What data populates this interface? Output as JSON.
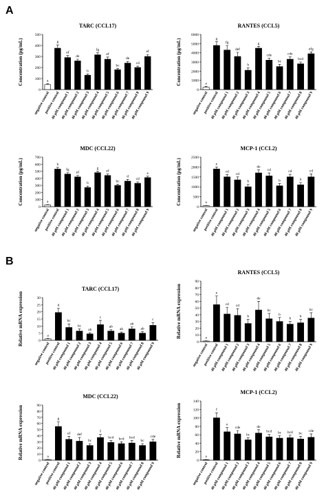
{
  "panel_labels": [
    "A",
    "B"
  ],
  "chart_data": [
    {
      "type": "bar",
      "title": "TARC (CCL17)",
      "y_label": "Concentration (pg/mL)",
      "categories": [
        "negative control",
        "positive control",
        "40 μM compound 1",
        "40 μM compound 2",
        "40 μM compound 3",
        "40 μM compound 4",
        "40 μM compound 5",
        "40 μM compound 6",
        "40 μM compound 7",
        "40 μM compound 8",
        "40 μM compound 9"
      ],
      "values": [
        45,
        375,
        290,
        260,
        130,
        315,
        275,
        180,
        240,
        200,
        300
      ],
      "errors": [
        8,
        30,
        18,
        15,
        12,
        18,
        20,
        12,
        15,
        12,
        18
      ],
      "letters": [
        "a",
        "g",
        "ef",
        "de",
        "b",
        "fg",
        "ef",
        "bc",
        "de",
        "cd",
        "ef"
      ],
      "ylim": [
        0,
        500
      ],
      "yticks": [
        0,
        100,
        200,
        300,
        400,
        500
      ],
      "color": "#000000",
      "first_bar_color": "#ffffff"
    },
    {
      "type": "bar",
      "title": "RANTES (CCL5)",
      "y_label": "Concentration (pg/mL)",
      "categories": [
        "negative control",
        "positive control",
        "40 μM compound 1",
        "40 μM compound 2",
        "40 μM compound 3",
        "40 μM compound 4",
        "40 μM compound 5",
        "40 μM compound 6",
        "40 μM compound 7",
        "40 μM compound 8",
        "40 μM compound 9"
      ],
      "values": [
        250,
        4800,
        4300,
        3600,
        2100,
        4500,
        3200,
        2500,
        3300,
        2800,
        3900
      ],
      "errors": [
        80,
        400,
        500,
        450,
        250,
        200,
        200,
        250,
        250,
        200,
        200
      ],
      "letters": [
        "a",
        "g",
        "fg",
        "def",
        "b",
        "g",
        "cde",
        "bc",
        "cde",
        "bcd",
        "efg"
      ],
      "ylim": [
        0,
        6000
      ],
      "yticks": [
        0,
        1000,
        2000,
        3000,
        4000,
        5000,
        6000
      ],
      "color": "#000000",
      "first_bar_color": "#ffffff"
    },
    {
      "type": "bar",
      "title": "MDC (CCL22)",
      "y_label": "Concentration (pg/mL)",
      "categories": [
        "negative control",
        "positive control",
        "40 μM compound 1",
        "40 μM compound 2",
        "40 μM compound 3",
        "40 μM compound 4",
        "40 μM compound 5",
        "40 μM compound 6",
        "40 μM compound 7",
        "40 μM compound 8",
        "40 μM compound 9"
      ],
      "values": [
        25,
        530,
        460,
        420,
        270,
        480,
        440,
        300,
        360,
        330,
        410
      ],
      "errors": [
        5,
        25,
        20,
        20,
        20,
        20,
        20,
        15,
        25,
        20,
        20
      ],
      "letters": [
        "a",
        "h",
        "fg",
        "ef",
        "b",
        "g",
        "ef",
        "bc",
        "d",
        "cd",
        "e"
      ],
      "ylim": [
        0,
        700
      ],
      "yticks": [
        0,
        100,
        200,
        300,
        400,
        500,
        600,
        700
      ],
      "color": "#000000",
      "first_bar_color": "#ffffff"
    },
    {
      "type": "bar",
      "title": "MCP-1 (CCL2)",
      "y_label": "Concentration (pg/mL)",
      "categories": [
        "negative control",
        "positive control",
        "40 μM compound 1",
        "40 μM compound 2",
        "40 μM compound 3",
        "40 μM compound 4",
        "40 μM compound 5",
        "40 μM compound 6",
        "40 μM compound 7",
        "40 μM compound 8",
        "40 μM compound 9"
      ],
      "values": [
        50,
        1900,
        1500,
        1350,
        1000,
        1700,
        1550,
        1050,
        1500,
        1100,
        1500
      ],
      "errors": [
        15,
        100,
        120,
        150,
        120,
        150,
        150,
        120,
        130,
        120,
        150
      ],
      "letters": [
        "a",
        "e",
        "cd",
        "cd",
        "b",
        "de",
        "cd",
        "b",
        "cd",
        "b",
        "cd"
      ],
      "ylim": [
        0,
        2500
      ],
      "yticks": [
        0,
        500,
        1000,
        1500,
        2000,
        2500
      ],
      "color": "#000000",
      "first_bar_color": "#ffffff"
    },
    {
      "type": "bar",
      "title": "TARC (CCL17)",
      "y_label": "Relative mRNA expression",
      "categories": [
        "negative control",
        "positive control",
        "40 μM compound 1",
        "40 μM compound 2",
        "40 μM compound 3",
        "40 μM compound 4",
        "40 μM compound 5",
        "40 μM compound 6",
        "40 μM compound 7",
        "40 μM compound 8",
        "40 μM compound 9"
      ],
      "values": [
        1,
        19.5,
        9,
        6.5,
        4.5,
        11,
        6.5,
        5,
        8,
        5,
        10.5
      ],
      "errors": [
        0.3,
        3,
        2.5,
        1.5,
        0.8,
        3,
        1,
        0.8,
        1.5,
        1,
        2
      ],
      "letters": [
        "a",
        "d",
        "bc",
        "bc",
        "ab",
        "c",
        "ab",
        "ab",
        "ab",
        "ab",
        "c"
      ],
      "ylim": [
        0,
        30
      ],
      "yticks": [
        0,
        5,
        10,
        15,
        20,
        25,
        30
      ],
      "color": "#000000",
      "first_bar_color": "#ffffff"
    },
    {
      "type": "bar",
      "title": "RANTES (CCL5)",
      "y_label": "Relative mRNA expression",
      "categories": [
        "negative control",
        "positive control",
        "40 μM compound 1",
        "40 μM compound 2",
        "40 μM compound 3",
        "40 μM compound 4",
        "40 μM compound 5",
        "40 μM compound 6",
        "40 μM compound 7",
        "40 μM compound 8",
        "40 μM compound 9"
      ],
      "values": [
        1,
        55,
        41,
        39,
        27,
        47,
        34,
        30,
        26,
        28,
        35
      ],
      "errors": [
        0.3,
        13,
        10,
        10,
        6,
        13,
        8,
        6,
        4,
        5,
        8
      ],
      "letters": [
        "a",
        "e",
        "cd",
        "cd",
        "b",
        "de",
        "bc",
        "b",
        "b",
        "b",
        "bc"
      ],
      "ylim": [
        0,
        90
      ],
      "yticks": [
        0,
        10,
        20,
        30,
        40,
        50,
        60,
        70,
        80,
        90
      ],
      "color": "#000000",
      "first_bar_color": "#ffffff"
    },
    {
      "type": "bar",
      "title": "MDC (CCL22)",
      "y_label": "Relative mRNA expression",
      "categories": [
        "negative control",
        "positive control",
        "40 μM compound 1",
        "40 μM compound 2",
        "40 μM compound 3",
        "40 μM compound 4",
        "40 μM compound 5",
        "40 μM compound 6",
        "40 μM compound 7",
        "40 μM compound 8",
        "40 μM compound 9"
      ],
      "values": [
        1,
        55,
        34,
        31,
        24,
        37,
        29,
        27,
        28,
        24,
        30
      ],
      "errors": [
        0.3,
        8,
        5,
        6,
        3,
        5,
        3,
        3,
        4,
        3,
        4
      ],
      "letters": [
        "a",
        "g",
        "ef",
        "def",
        "bc",
        "f",
        "bcd",
        "bcd",
        "bcd",
        "bc",
        "cde"
      ],
      "ylim": [
        0,
        90
      ],
      "yticks": [
        0,
        10,
        20,
        30,
        40,
        50,
        60,
        70,
        80,
        90
      ],
      "color": "#000000",
      "first_bar_color": "#ffffff"
    },
    {
      "type": "bar",
      "title": "MCP-1 (CCL2)",
      "y_label": "Relative mRNA expression",
      "categories": [
        "negative control",
        "positive control",
        "40 μM compound 1",
        "40 μM compound 2",
        "40 μM compound 3",
        "40 μM compound 4",
        "40 μM compound 5",
        "40 μM compound 6",
        "40 μM compound 7",
        "40 μM compound 8",
        "40 μM compound 9"
      ],
      "values": [
        1,
        100,
        67,
        62,
        48,
        64,
        55,
        52,
        53,
        50,
        54
      ],
      "errors": [
        0.5,
        12,
        10,
        8,
        5,
        8,
        6,
        6,
        6,
        6,
        8
      ],
      "letters": [
        "a",
        "f",
        "e",
        "cde",
        "bc",
        "de",
        "bcd",
        "bc",
        "bcd",
        "bc",
        "cde"
      ],
      "ylim": [
        0,
        140
      ],
      "yticks": [
        0,
        20,
        40,
        60,
        80,
        100,
        120,
        140
      ],
      "color": "#000000",
      "first_bar_color": "#ffffff"
    }
  ]
}
